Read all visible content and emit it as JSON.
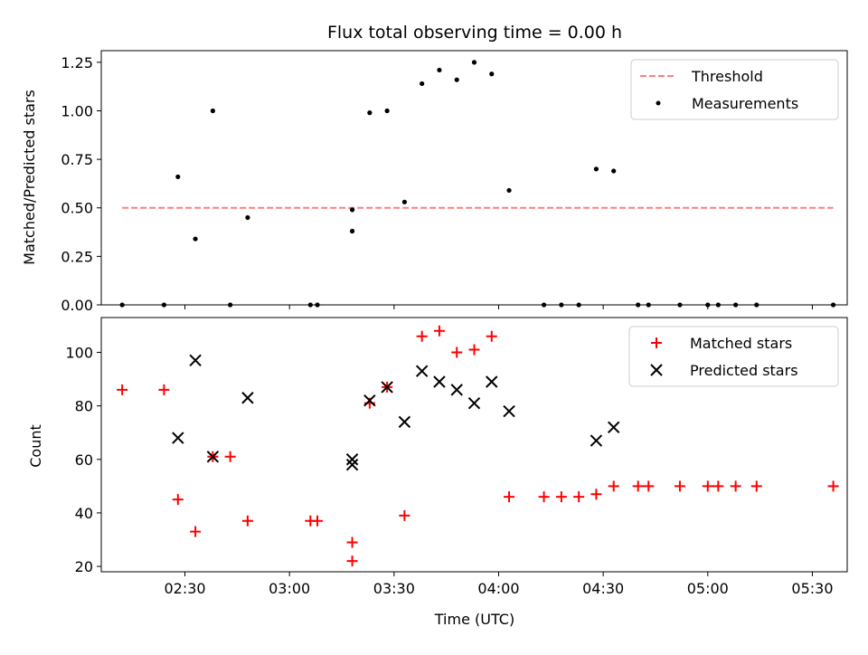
{
  "chart_data": [
    {
      "type": "scatter",
      "title": "Flux total observing time = 0.00 h",
      "xlabel": "",
      "ylabel": "Matched/Predicted stars",
      "xlim": [
        "02:06",
        "05:40"
      ],
      "ylim": [
        0,
        1.31
      ],
      "yticks": [
        "0.00",
        "0.25",
        "0.50",
        "0.75",
        "1.00",
        "1.25"
      ],
      "xticks": [
        "02:30",
        "03:00",
        "03:30",
        "04:00",
        "04:30",
        "05:00",
        "05:30"
      ],
      "grid": false,
      "legend_position": "top-right",
      "threshold": {
        "name": "Threshold",
        "y": 0.5,
        "x_start": "02:12",
        "x_end": "05:36",
        "color": "#ff7f7f",
        "style": "dashed"
      },
      "series": [
        {
          "name": "Measurements",
          "marker": "dot",
          "color": "#000000",
          "points": [
            [
              "02:12",
              0.0
            ],
            [
              "02:24",
              0.0
            ],
            [
              "02:28",
              0.66
            ],
            [
              "02:33",
              0.34
            ],
            [
              "02:38",
              1.0
            ],
            [
              "02:43",
              0.0
            ],
            [
              "02:48",
              0.45
            ],
            [
              "03:06",
              0.0
            ],
            [
              "03:08",
              0.0
            ],
            [
              "03:18",
              0.38
            ],
            [
              "03:18",
              0.49
            ],
            [
              "03:23",
              0.99
            ],
            [
              "03:28",
              1.0
            ],
            [
              "03:33",
              0.53
            ],
            [
              "03:38",
              1.14
            ],
            [
              "03:43",
              1.21
            ],
            [
              "03:48",
              1.16
            ],
            [
              "03:53",
              1.25
            ],
            [
              "03:58",
              1.19
            ],
            [
              "04:03",
              0.59
            ],
            [
              "04:13",
              0.0
            ],
            [
              "04:18",
              0.0
            ],
            [
              "04:23",
              0.0
            ],
            [
              "04:28",
              0.7
            ],
            [
              "04:33",
              0.69
            ],
            [
              "04:40",
              0.0
            ],
            [
              "04:43",
              0.0
            ],
            [
              "04:52",
              0.0
            ],
            [
              "05:00",
              0.0
            ],
            [
              "05:03",
              0.0
            ],
            [
              "05:08",
              0.0
            ],
            [
              "05:14",
              0.0
            ],
            [
              "05:36",
              0.0
            ]
          ]
        }
      ]
    },
    {
      "type": "scatter",
      "title": "",
      "xlabel": "Time (UTC)",
      "ylabel": "Count",
      "xlim": [
        "02:06",
        "05:40"
      ],
      "ylim": [
        18,
        113
      ],
      "yticks": [
        "20",
        "40",
        "60",
        "80",
        "100"
      ],
      "xticks": [
        "02:30",
        "03:00",
        "03:30",
        "04:00",
        "04:30",
        "05:00",
        "05:30"
      ],
      "grid": false,
      "legend_position": "top-right",
      "series": [
        {
          "name": "Matched stars",
          "marker": "plus",
          "color": "#ff0000",
          "points": [
            [
              "02:12",
              86
            ],
            [
              "02:24",
              86
            ],
            [
              "02:28",
              45
            ],
            [
              "02:33",
              33
            ],
            [
              "02:38",
              61
            ],
            [
              "02:43",
              61
            ],
            [
              "02:48",
              37
            ],
            [
              "03:06",
              37
            ],
            [
              "03:08",
              37
            ],
            [
              "03:18",
              22
            ],
            [
              "03:18",
              29
            ],
            [
              "03:23",
              81
            ],
            [
              "03:28",
              87
            ],
            [
              "03:33",
              39
            ],
            [
              "03:38",
              106
            ],
            [
              "03:43",
              108
            ],
            [
              "03:48",
              100
            ],
            [
              "03:53",
              101
            ],
            [
              "03:58",
              106
            ],
            [
              "04:03",
              46
            ],
            [
              "04:13",
              46
            ],
            [
              "04:18",
              46
            ],
            [
              "04:23",
              46
            ],
            [
              "04:28",
              47
            ],
            [
              "04:33",
              50
            ],
            [
              "04:40",
              50
            ],
            [
              "04:43",
              50
            ],
            [
              "04:52",
              50
            ],
            [
              "05:00",
              50
            ],
            [
              "05:03",
              50
            ],
            [
              "05:08",
              50
            ],
            [
              "05:14",
              50
            ],
            [
              "05:36",
              50
            ]
          ]
        },
        {
          "name": "Predicted stars",
          "marker": "x",
          "color": "#000000",
          "points": [
            [
              "02:28",
              68
            ],
            [
              "02:33",
              97
            ],
            [
              "02:38",
              61
            ],
            [
              "02:48",
              83
            ],
            [
              "03:18",
              58
            ],
            [
              "03:18",
              60
            ],
            [
              "03:23",
              82
            ],
            [
              "03:28",
              87
            ],
            [
              "03:33",
              74
            ],
            [
              "03:38",
              93
            ],
            [
              "03:43",
              89
            ],
            [
              "03:48",
              86
            ],
            [
              "03:53",
              81
            ],
            [
              "03:58",
              89
            ],
            [
              "04:03",
              78
            ],
            [
              "04:28",
              67
            ],
            [
              "04:33",
              72
            ]
          ]
        }
      ]
    }
  ]
}
